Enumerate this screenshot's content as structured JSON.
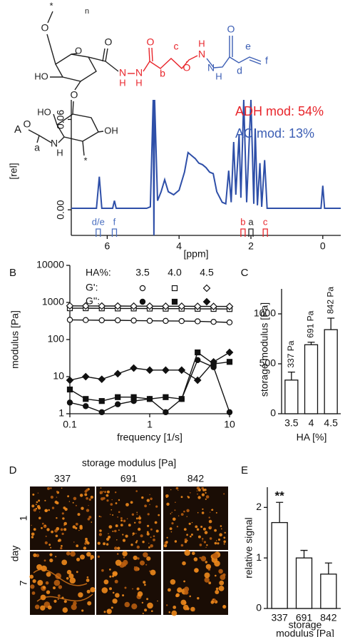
{
  "structure": {
    "atoms": [
      "*",
      "n",
      "O",
      "O",
      "O",
      "N",
      "H",
      "N",
      "H",
      "O",
      "b",
      "c",
      "O",
      "N",
      "H",
      "N",
      "H",
      "O",
      "d",
      "e",
      "f",
      "HO",
      "O",
      "HO",
      "OH",
      "O",
      "a",
      "N",
      "H",
      "*"
    ]
  },
  "chart_data": [
    {
      "type": "line",
      "label": "A",
      "x": [
        7.0,
        6.3,
        6.22,
        6.15,
        5.85,
        5.8,
        5.75,
        4.9,
        4.8,
        4.72,
        4.7,
        4.68,
        4.6,
        4.5,
        4.4,
        4.3,
        4.15,
        4.0,
        3.85,
        3.75,
        3.65,
        3.55,
        3.45,
        3.35,
        3.25,
        3.15,
        3.05,
        2.95,
        2.8,
        2.7,
        2.62,
        2.55,
        2.48,
        2.42,
        2.33,
        2.28,
        2.2,
        2.12,
        2.0,
        1.92,
        1.88,
        1.82,
        1.75,
        1.7,
        1.62,
        1.55,
        1.0,
        0.05,
        0.0,
        -0.05,
        -0.5
      ],
      "values": [
        0.001,
        0.001,
        0.022,
        0.001,
        0.001,
        0.006,
        0.001,
        0.001,
        0.002,
        0.073,
        -0.017,
        0.073,
        0.006,
        0.012,
        0.02,
        0.012,
        0.01,
        0.013,
        0.025,
        0.038,
        0.036,
        0.034,
        0.031,
        0.03,
        0.028,
        0.025,
        0.024,
        0.012,
        0.005,
        0.004,
        0.026,
        0.005,
        0.045,
        0.01,
        0.05,
        0.008,
        0.073,
        0.005,
        0.073,
        0.004,
        0.054,
        0.003,
        0.031,
        0.002,
        0.033,
        0.001,
        0.001,
        0.001,
        0.016,
        0.001,
        0.001
      ],
      "color": "#2e4fa8",
      "xlim": [
        7,
        -0.5
      ],
      "ylim": [
        -0.017,
        0.073
      ],
      "xticks": [
        6,
        4,
        2,
        0
      ],
      "yticks": [
        {
          "value": 0,
          "label": "0.00"
        },
        {
          "value": 0.06,
          "label": "0.06"
        }
      ],
      "xlabel": "[ppm]",
      "ylabel": "[rel]",
      "annotations": [
        {
          "text": "ADH mod: 54%",
          "color": "#e8252b"
        },
        {
          "text": "AC mod: 13%",
          "color": "#3c5eb4"
        }
      ],
      "peaks": [
        {
          "label": "d/e",
          "x": 6.25,
          "color": "#4a6fc0"
        },
        {
          "label": "f",
          "x": 5.8,
          "color": "#4a6fc0"
        },
        {
          "label": "b",
          "x": 2.22,
          "color": "#e8252b"
        },
        {
          "label": "a",
          "x": 2.0,
          "color": "#222222"
        },
        {
          "label": "c",
          "x": 1.6,
          "color": "#e8252b"
        }
      ]
    },
    {
      "type": "line",
      "label": "B",
      "log": true,
      "x": [
        0.1,
        0.158,
        0.251,
        0.398,
        0.631,
        1,
        1.585,
        2.512,
        3.981,
        6.31,
        10
      ],
      "xlim": [
        0.1,
        10
      ],
      "ylim": [
        1,
        10000
      ],
      "xticks": [
        0.1,
        1,
        10
      ],
      "yticks": [
        1,
        10,
        100,
        1000,
        10000
      ],
      "xlabel": "frequency [1/s]",
      "ylabel": "modulus [Pa]",
      "legend": {
        "title": "HA%:",
        "columns": [
          "3.5",
          "4.0",
          "4.5"
        ],
        "rows": [
          "G':",
          "G'':"
        ]
      },
      "series": [
        {
          "marker": "circle",
          "filled": false,
          "values": [
            340,
            335,
            330,
            330,
            325,
            320,
            318,
            315,
            310,
            300,
            290
          ]
        },
        {
          "marker": "square",
          "filled": false,
          "values": [
            700,
            700,
            695,
            690,
            690,
            685,
            680,
            680,
            675,
            670,
            665
          ]
        },
        {
          "marker": "diamond",
          "filled": false,
          "values": [
            810,
            805,
            800,
            800,
            795,
            795,
            790,
            790,
            785,
            780,
            780
          ]
        },
        {
          "marker": "circle",
          "filled": true,
          "values": [
            2,
            1.6,
            1.1,
            1.8,
            2.2,
            2.5,
            1.1,
            2.5,
            28,
            18,
            1.1
          ]
        },
        {
          "marker": "square",
          "filled": true,
          "values": [
            4.5,
            2.5,
            2.2,
            2.8,
            2.8,
            2.5,
            2.8,
            2.5,
            45,
            22,
            25
          ]
        },
        {
          "marker": "diamond",
          "filled": true,
          "values": [
            8,
            10,
            8.5,
            12,
            17,
            15,
            15,
            15,
            8,
            25,
            45
          ]
        }
      ]
    },
    {
      "type": "bar",
      "label": "C",
      "categories": [
        "3.5",
        "4",
        "4.5"
      ],
      "values": [
        337,
        691,
        842
      ],
      "value_labels": [
        "337 Pa",
        "691 Pa",
        "842 Pa"
      ],
      "errors": [
        80,
        25,
        115
      ],
      "color": "#ffffff",
      "ylim": [
        0,
        1250
      ],
      "yticks": [
        0,
        500,
        1000
      ],
      "xlabel": "HA [%]",
      "ylabel": "storage modulus [Pa]"
    },
    {
      "type": "bar",
      "label": "E",
      "categories": [
        "337",
        "691",
        "842"
      ],
      "values": [
        1.7,
        1.0,
        0.68
      ],
      "errors": [
        0.4,
        0.15,
        0.22
      ],
      "annotations": [
        "**",
        null,
        null
      ],
      "color": "#ffffff",
      "ylim": [
        0,
        2.4
      ],
      "yticks": [
        0,
        1,
        2
      ],
      "xlabel": [
        "storage",
        "modulus [Pa]"
      ],
      "ylabel": "relative signal"
    }
  ],
  "micrographs": {
    "label": "D",
    "title": "storage modulus [Pa]",
    "columns": [
      "337",
      "691",
      "842"
    ],
    "row_title": "day",
    "rows": [
      "1",
      "7"
    ]
  }
}
